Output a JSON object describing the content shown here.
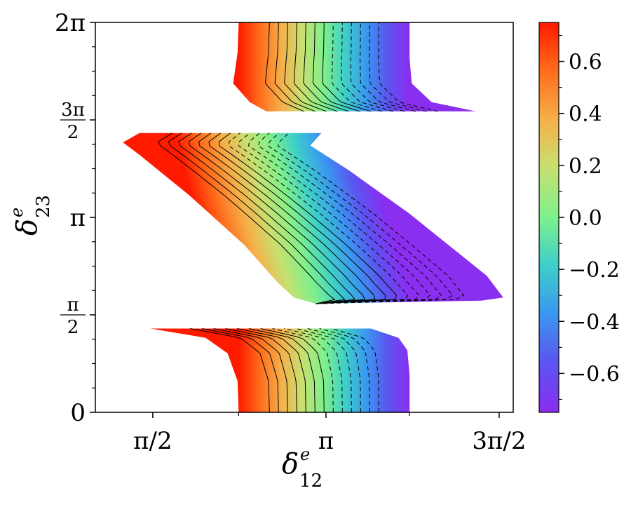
{
  "chart_data": {
    "type": "heatmap",
    "title": "",
    "xlabel": {
      "base": "δ",
      "sup": "e",
      "sub": "12"
    },
    "ylabel": {
      "base": "δ",
      "sup": "e",
      "sub": "23"
    },
    "x_ticks": [
      {
        "value": 1.5708,
        "label": "π/2"
      },
      {
        "value": 3.1416,
        "label": "π"
      },
      {
        "value": 4.7124,
        "label": "3π/2"
      }
    ],
    "y_ticks": [
      {
        "value": 0,
        "label": "0"
      },
      {
        "value": 1.5708,
        "label_num": "π",
        "label_den": "2"
      },
      {
        "value": 3.1416,
        "label": "π"
      },
      {
        "value": 4.7124,
        "label_num": "3π",
        "label_den": "2"
      },
      {
        "value": 6.2832,
        "label": "2π"
      }
    ],
    "xlim": [
      1.05,
      4.84
    ],
    "ylim": [
      0,
      6.2832
    ],
    "colorbar": {
      "colormap": "rainbow",
      "range": [
        -0.75,
        0.75
      ],
      "ticks": [
        "0.6",
        "0.4",
        "0.2",
        "0.0",
        "−0.2",
        "−0.4",
        "−0.6"
      ],
      "tick_values": [
        0.6,
        0.4,
        0.2,
        0.0,
        -0.2,
        -0.4,
        -0.6
      ]
    },
    "contour_levels": [
      -0.6,
      -0.5,
      -0.4,
      -0.3,
      -0.2,
      -0.1,
      0.0,
      0.1,
      0.2,
      0.3,
      0.4,
      0.5,
      0.6
    ],
    "contour_style": {
      "negative": "dashed",
      "nonnegative": "solid"
    },
    "regions": [
      {
        "name": "bottom band",
        "y_range": [
          0,
          1.35
        ],
        "left_edge": [
          [
            2.35,
            0
          ],
          [
            2.34,
            0.5
          ],
          [
            2.25,
            0.95
          ],
          [
            2.05,
            1.2
          ],
          [
            1.55,
            1.35
          ]
        ],
        "right_edge": [
          [
            3.9,
            0
          ],
          [
            3.9,
            0.6
          ],
          [
            3.88,
            1.0
          ],
          [
            3.8,
            1.2
          ],
          [
            3.55,
            1.35
          ]
        ]
      },
      {
        "name": "middle band",
        "y_range": [
          1.75,
          4.5
        ],
        "left_edge": [
          [
            3.05,
            1.75
          ],
          [
            2.85,
            1.85
          ],
          [
            2.7,
            2.1
          ],
          [
            2.4,
            2.7
          ],
          [
            1.9,
            3.5
          ],
          [
            1.45,
            4.15
          ],
          [
            1.3,
            4.35
          ],
          [
            1.45,
            4.5
          ]
        ],
        "right_edge": [
          [
            3.05,
            1.75
          ],
          [
            4.55,
            1.8
          ],
          [
            4.75,
            1.85
          ],
          [
            4.6,
            2.2
          ],
          [
            3.9,
            3.2
          ],
          [
            3.35,
            3.9
          ],
          [
            3.0,
            4.3
          ],
          [
            3.1,
            4.5
          ]
        ]
      },
      {
        "name": "top band",
        "y_range": [
          4.85,
          6.2832
        ],
        "left_edge": [
          [
            2.35,
            6.2832
          ],
          [
            2.34,
            5.8
          ],
          [
            2.3,
            5.3
          ],
          [
            2.45,
            5.0
          ],
          [
            2.6,
            4.85
          ]
        ],
        "right_edge": [
          [
            3.9,
            6.2832
          ],
          [
            3.9,
            5.7
          ],
          [
            3.92,
            5.3
          ],
          [
            4.1,
            5.0
          ],
          [
            4.5,
            4.85
          ]
        ]
      }
    ]
  }
}
